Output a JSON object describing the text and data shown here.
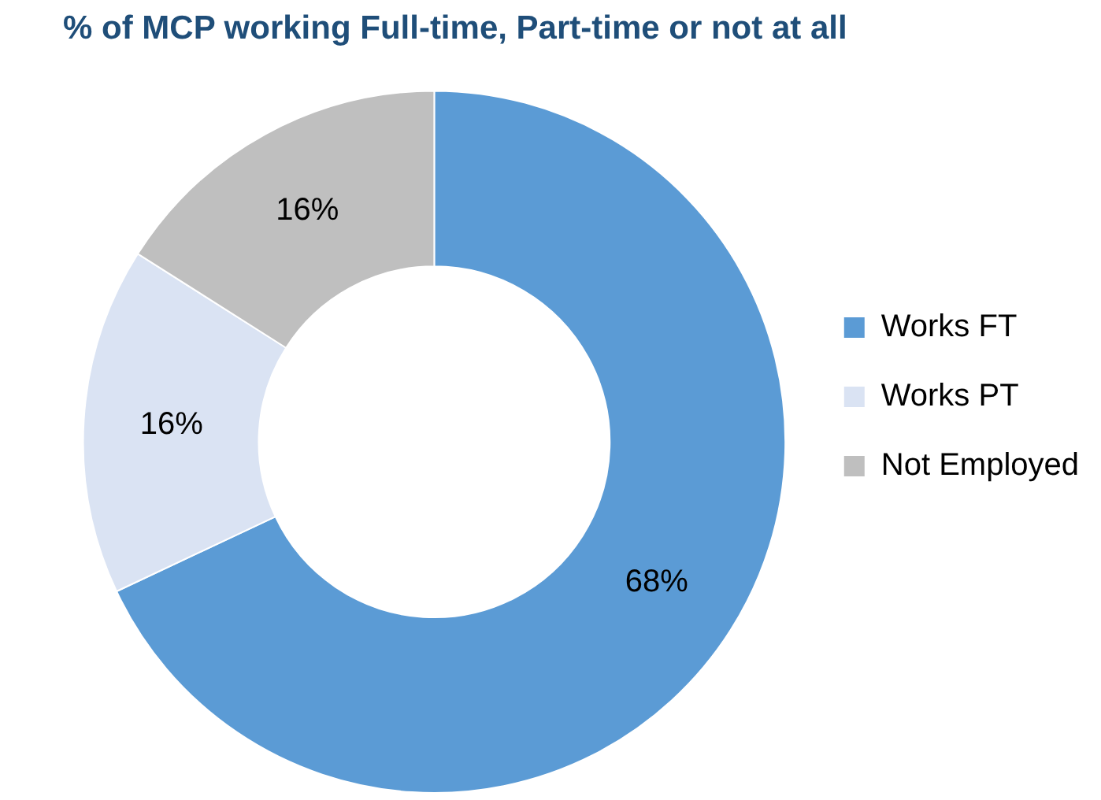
{
  "chart_data": {
    "type": "donut",
    "title": "% of MCP working Full-time, Part-time or not at all",
    "categories": [
      "Works FT",
      "Works PT",
      "Not Employed"
    ],
    "values": [
      68,
      16,
      16
    ],
    "colors": [
      "#5b9bd5",
      "#dae3f3",
      "#bfbfbf"
    ],
    "value_labels": [
      "68%",
      "16%",
      "16%"
    ],
    "legend": "right"
  }
}
